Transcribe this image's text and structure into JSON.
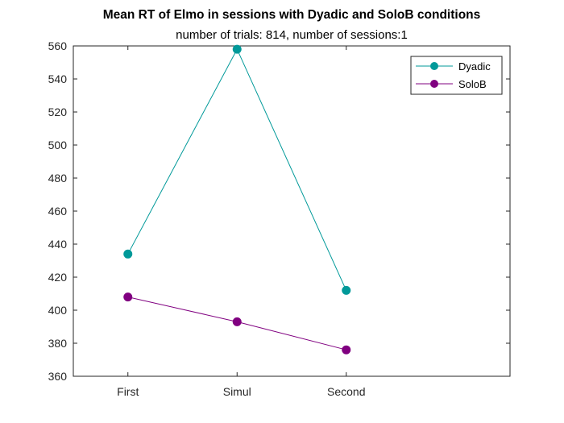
{
  "chart_data": {
    "type": "line",
    "title": "Mean RT of Elmo in sessions with Dyadic and SoloB conditions",
    "subtitle": "number of trials: 814, number of sessions:1",
    "xlabel": "",
    "ylabel": "",
    "categories": [
      "First",
      "Simul",
      "Second"
    ],
    "ylim": [
      360,
      560
    ],
    "yticks": [
      360,
      380,
      400,
      420,
      440,
      460,
      480,
      500,
      520,
      540,
      560
    ],
    "grid": false,
    "legend_position": "top-right",
    "series": [
      {
        "name": "Dyadic",
        "color": "#009999",
        "values": [
          434,
          558,
          412
        ]
      },
      {
        "name": "SoloB",
        "color": "#800080",
        "values": [
          408,
          393,
          376
        ]
      }
    ]
  }
}
